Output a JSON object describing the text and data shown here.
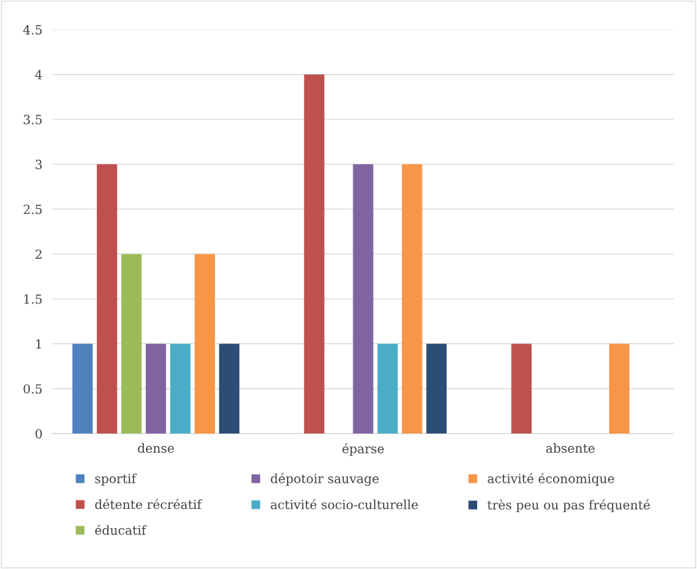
{
  "chart_data": {
    "type": "bar",
    "categories": [
      "dense",
      "éparse",
      "absente"
    ],
    "series": [
      {
        "name": "sportif",
        "color": "#4f81bd",
        "values": [
          1,
          0,
          0
        ]
      },
      {
        "name": "détente récréatif",
        "color": "#c0504d",
        "values": [
          3,
          4,
          1
        ]
      },
      {
        "name": "éducatif",
        "color": "#9bbb59",
        "values": [
          2,
          0,
          0
        ]
      },
      {
        "name": "dépotoir sauvage",
        "color": "#8064a2",
        "values": [
          1,
          3,
          0
        ]
      },
      {
        "name": "activité socio-culturelle",
        "color": "#4bacc6",
        "values": [
          1,
          1,
          0
        ]
      },
      {
        "name": "activité économique",
        "color": "#f79646",
        "values": [
          2,
          3,
          1
        ]
      },
      {
        "name": "très peu ou pas fréquenté",
        "color": "#2c4d75",
        "values": [
          1,
          1,
          0
        ]
      }
    ],
    "ylim": [
      0,
      4.5
    ],
    "yticks": [
      0,
      0.5,
      1,
      1.5,
      2,
      2.5,
      3,
      3.5,
      4,
      4.5
    ],
    "grid": "y",
    "legend": "bottom"
  }
}
